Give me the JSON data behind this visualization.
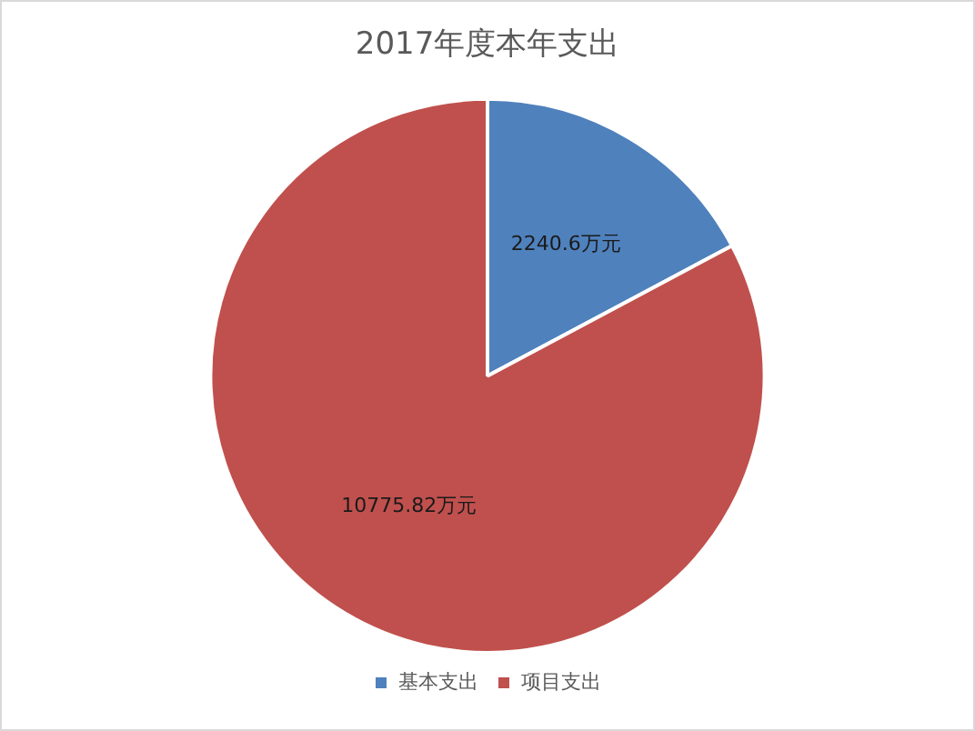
{
  "chart_data": {
    "type": "pie",
    "title": "2017年度本年支出",
    "categories": [
      "基本支出",
      "项目支出"
    ],
    "values": [
      2240.6,
      10775.82
    ],
    "colors": [
      "#4f81bd",
      "#c0504d"
    ],
    "value_labels": [
      "2240.6万元",
      "10775.82万元"
    ],
    "legend": "bottom"
  }
}
